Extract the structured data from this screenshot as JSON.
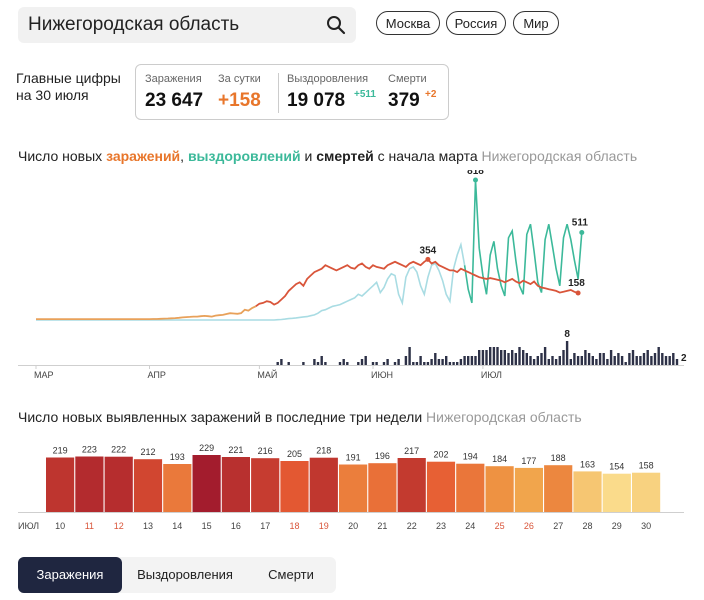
{
  "search": {
    "value": "Нижегородская область"
  },
  "regions": [
    "Москва",
    "Россия",
    "Мир"
  ],
  "key_figures": {
    "title": "Главные цифры на 30 июля",
    "infections": {
      "label": "Заражения",
      "value": "23 647"
    },
    "daily": {
      "label": "За сутки",
      "value": "+158"
    },
    "recovered": {
      "label": "Выздоровления",
      "value": "19 078",
      "delta": "+511"
    },
    "deaths": {
      "label": "Смерти",
      "value": "379",
      "delta": "+2"
    }
  },
  "line_title": {
    "prefix": "Число новых ",
    "infections": "заражений",
    "sep1": ", ",
    "recoveries": "выздоровлений",
    "sep2": " и ",
    "deaths": "смертей",
    "suffix": " с начала марта",
    "region": "Нижегородская область"
  },
  "bar_title": {
    "text": "Число новых выявленных заражений в последние три недели",
    "region": "Нижегородская область"
  },
  "tabs": [
    "Заражения",
    "Выздоровления",
    "Смерти"
  ],
  "colors": {
    "infections": "#d9553a",
    "infections_early": "#e8a15a",
    "recoveries": "#3cb99a",
    "recoveries_light": "#a9dce3",
    "deaths": "#2d3147",
    "weekend_label": "#d9553a"
  },
  "chart_data": [
    {
      "type": "line",
      "x_labels": [
        "МАР",
        "АПР",
        "МАЙ",
        "ИЮН",
        "ИЮЛ"
      ],
      "annotations": [
        {
          "series": "recoveries",
          "label": "818"
        },
        {
          "series": "infections",
          "label": "354"
        },
        {
          "series": "recoveries",
          "label": "511"
        },
        {
          "series": "infections",
          "label": "158"
        },
        {
          "series": "deaths",
          "label": "8"
        },
        {
          "series": "deaths",
          "label": "2"
        }
      ],
      "series": [
        {
          "key": "infections",
          "values": [
            5,
            5,
            5,
            5,
            5,
            5,
            5,
            5,
            5,
            5,
            5,
            5,
            5,
            5,
            5,
            5,
            5,
            5,
            5,
            5,
            5,
            5,
            5,
            5,
            5,
            5,
            5,
            5,
            5,
            5,
            5,
            5,
            6,
            6,
            7,
            8,
            9,
            10,
            11,
            13,
            15,
            17,
            18,
            20,
            20,
            22,
            24,
            22,
            20,
            26,
            28,
            30,
            35,
            40,
            38,
            36,
            40,
            60,
            55,
            70,
            80,
            95,
            100,
            110,
            105,
            90,
            100,
            120,
            140,
            170,
            190,
            210,
            220,
            200,
            240,
            260,
            280,
            290,
            300,
            320,
            310,
            300,
            290,
            300,
            310,
            320,
            305,
            300,
            320,
            330,
            310,
            300,
            320,
            310,
            305,
            300,
            320,
            330,
            340,
            330,
            320,
            310,
            330,
            340,
            330,
            320,
            340,
            354,
            330,
            340,
            320,
            310,
            300,
            290,
            290,
            280,
            300,
            290,
            280,
            270,
            260,
            250,
            245,
            240,
            245,
            240,
            235,
            230,
            220,
            230,
            240,
            225,
            215,
            230,
            220,
            210,
            225,
            200,
            190,
            185,
            180,
            175,
            170,
            160,
            165,
            170,
            175,
            165,
            158
          ]
        },
        {
          "key": "recoveries",
          "values": [
            0,
            0,
            0,
            0,
            0,
            0,
            0,
            0,
            0,
            0,
            0,
            0,
            0,
            0,
            0,
            0,
            0,
            0,
            0,
            0,
            0,
            0,
            0,
            0,
            0,
            0,
            0,
            0,
            0,
            0,
            0,
            0,
            0,
            0,
            0,
            0,
            0,
            0,
            0,
            0,
            0,
            0,
            0,
            0,
            0,
            0,
            0,
            0,
            0,
            0,
            0,
            0,
            0,
            0,
            0,
            0,
            0,
            0,
            0,
            0,
            0,
            0,
            0,
            0,
            0,
            0,
            2,
            3,
            5,
            8,
            10,
            12,
            15,
            18,
            20,
            25,
            30,
            40,
            55,
            60,
            70,
            80,
            85,
            90,
            100,
            110,
            120,
            130,
            150,
            140,
            160,
            180,
            200,
            220,
            160,
            190,
            240,
            270,
            260,
            150,
            100,
            250,
            300,
            310,
            280,
            200,
            150,
            250,
            320,
            330,
            290,
            230,
            150,
            110,
            300,
            380,
            440,
            320,
            180,
            100,
            818,
            420,
            260,
            150,
            380,
            460,
            300,
            200,
            140,
            480,
            520,
            350,
            200,
            150,
            500,
            560,
            400,
            220,
            160,
            470,
            560,
            430,
            300,
            200,
            480,
            560,
            470,
            350,
            240,
            511
          ]
        },
        {
          "key": "deaths",
          "values": [
            0,
            0,
            0,
            0,
            0,
            0,
            0,
            0,
            0,
            0,
            0,
            0,
            0,
            0,
            0,
            0,
            0,
            0,
            0,
            0,
            0,
            0,
            0,
            0,
            0,
            0,
            0,
            0,
            0,
            0,
            0,
            0,
            0,
            0,
            0,
            0,
            0,
            0,
            0,
            0,
            0,
            0,
            0,
            0,
            0,
            0,
            0,
            0,
            0,
            0,
            0,
            0,
            0,
            0,
            0,
            0,
            0,
            0,
            0,
            0,
            0,
            0,
            0,
            0,
            0,
            0,
            1,
            2,
            0,
            1,
            0,
            0,
            0,
            1,
            0,
            0,
            2,
            1,
            3,
            1,
            0,
            0,
            0,
            1,
            2,
            1,
            0,
            0,
            1,
            2,
            3,
            0,
            1,
            1,
            0,
            1,
            2,
            0,
            1,
            2,
            0,
            3,
            6,
            1,
            1,
            3,
            1,
            1,
            2,
            4,
            2,
            2,
            3,
            1,
            1,
            1,
            2,
            3,
            3,
            3,
            3,
            5,
            5,
            5,
            6,
            6,
            6,
            5,
            5,
            4,
            5,
            4,
            6,
            5,
            4,
            3,
            2,
            3,
            4,
            6,
            2,
            3,
            2,
            3,
            5,
            8,
            2,
            4,
            3,
            3,
            5,
            4,
            3,
            2,
            4,
            4,
            2,
            5,
            3,
            4,
            3,
            1,
            4,
            5,
            3,
            3,
            4,
            5,
            3,
            4,
            6,
            4,
            3,
            3,
            4,
            2
          ]
        }
      ]
    },
    {
      "type": "bar",
      "x_prefix_label": "ИЮЛ",
      "categories": [
        "10",
        "11",
        "12",
        "13",
        "14",
        "15",
        "16",
        "17",
        "18",
        "19",
        "20",
        "21",
        "22",
        "23",
        "24",
        "25",
        "26",
        "27",
        "28",
        "29",
        "30"
      ],
      "values": [
        219,
        223,
        222,
        212,
        193,
        229,
        221,
        216,
        205,
        218,
        191,
        196,
        217,
        202,
        194,
        184,
        177,
        188,
        163,
        154,
        158
      ],
      "weekend": [
        false,
        true,
        true,
        false,
        false,
        false,
        false,
        false,
        true,
        true,
        false,
        false,
        false,
        false,
        false,
        true,
        true,
        false,
        false,
        false,
        false
      ]
    }
  ]
}
